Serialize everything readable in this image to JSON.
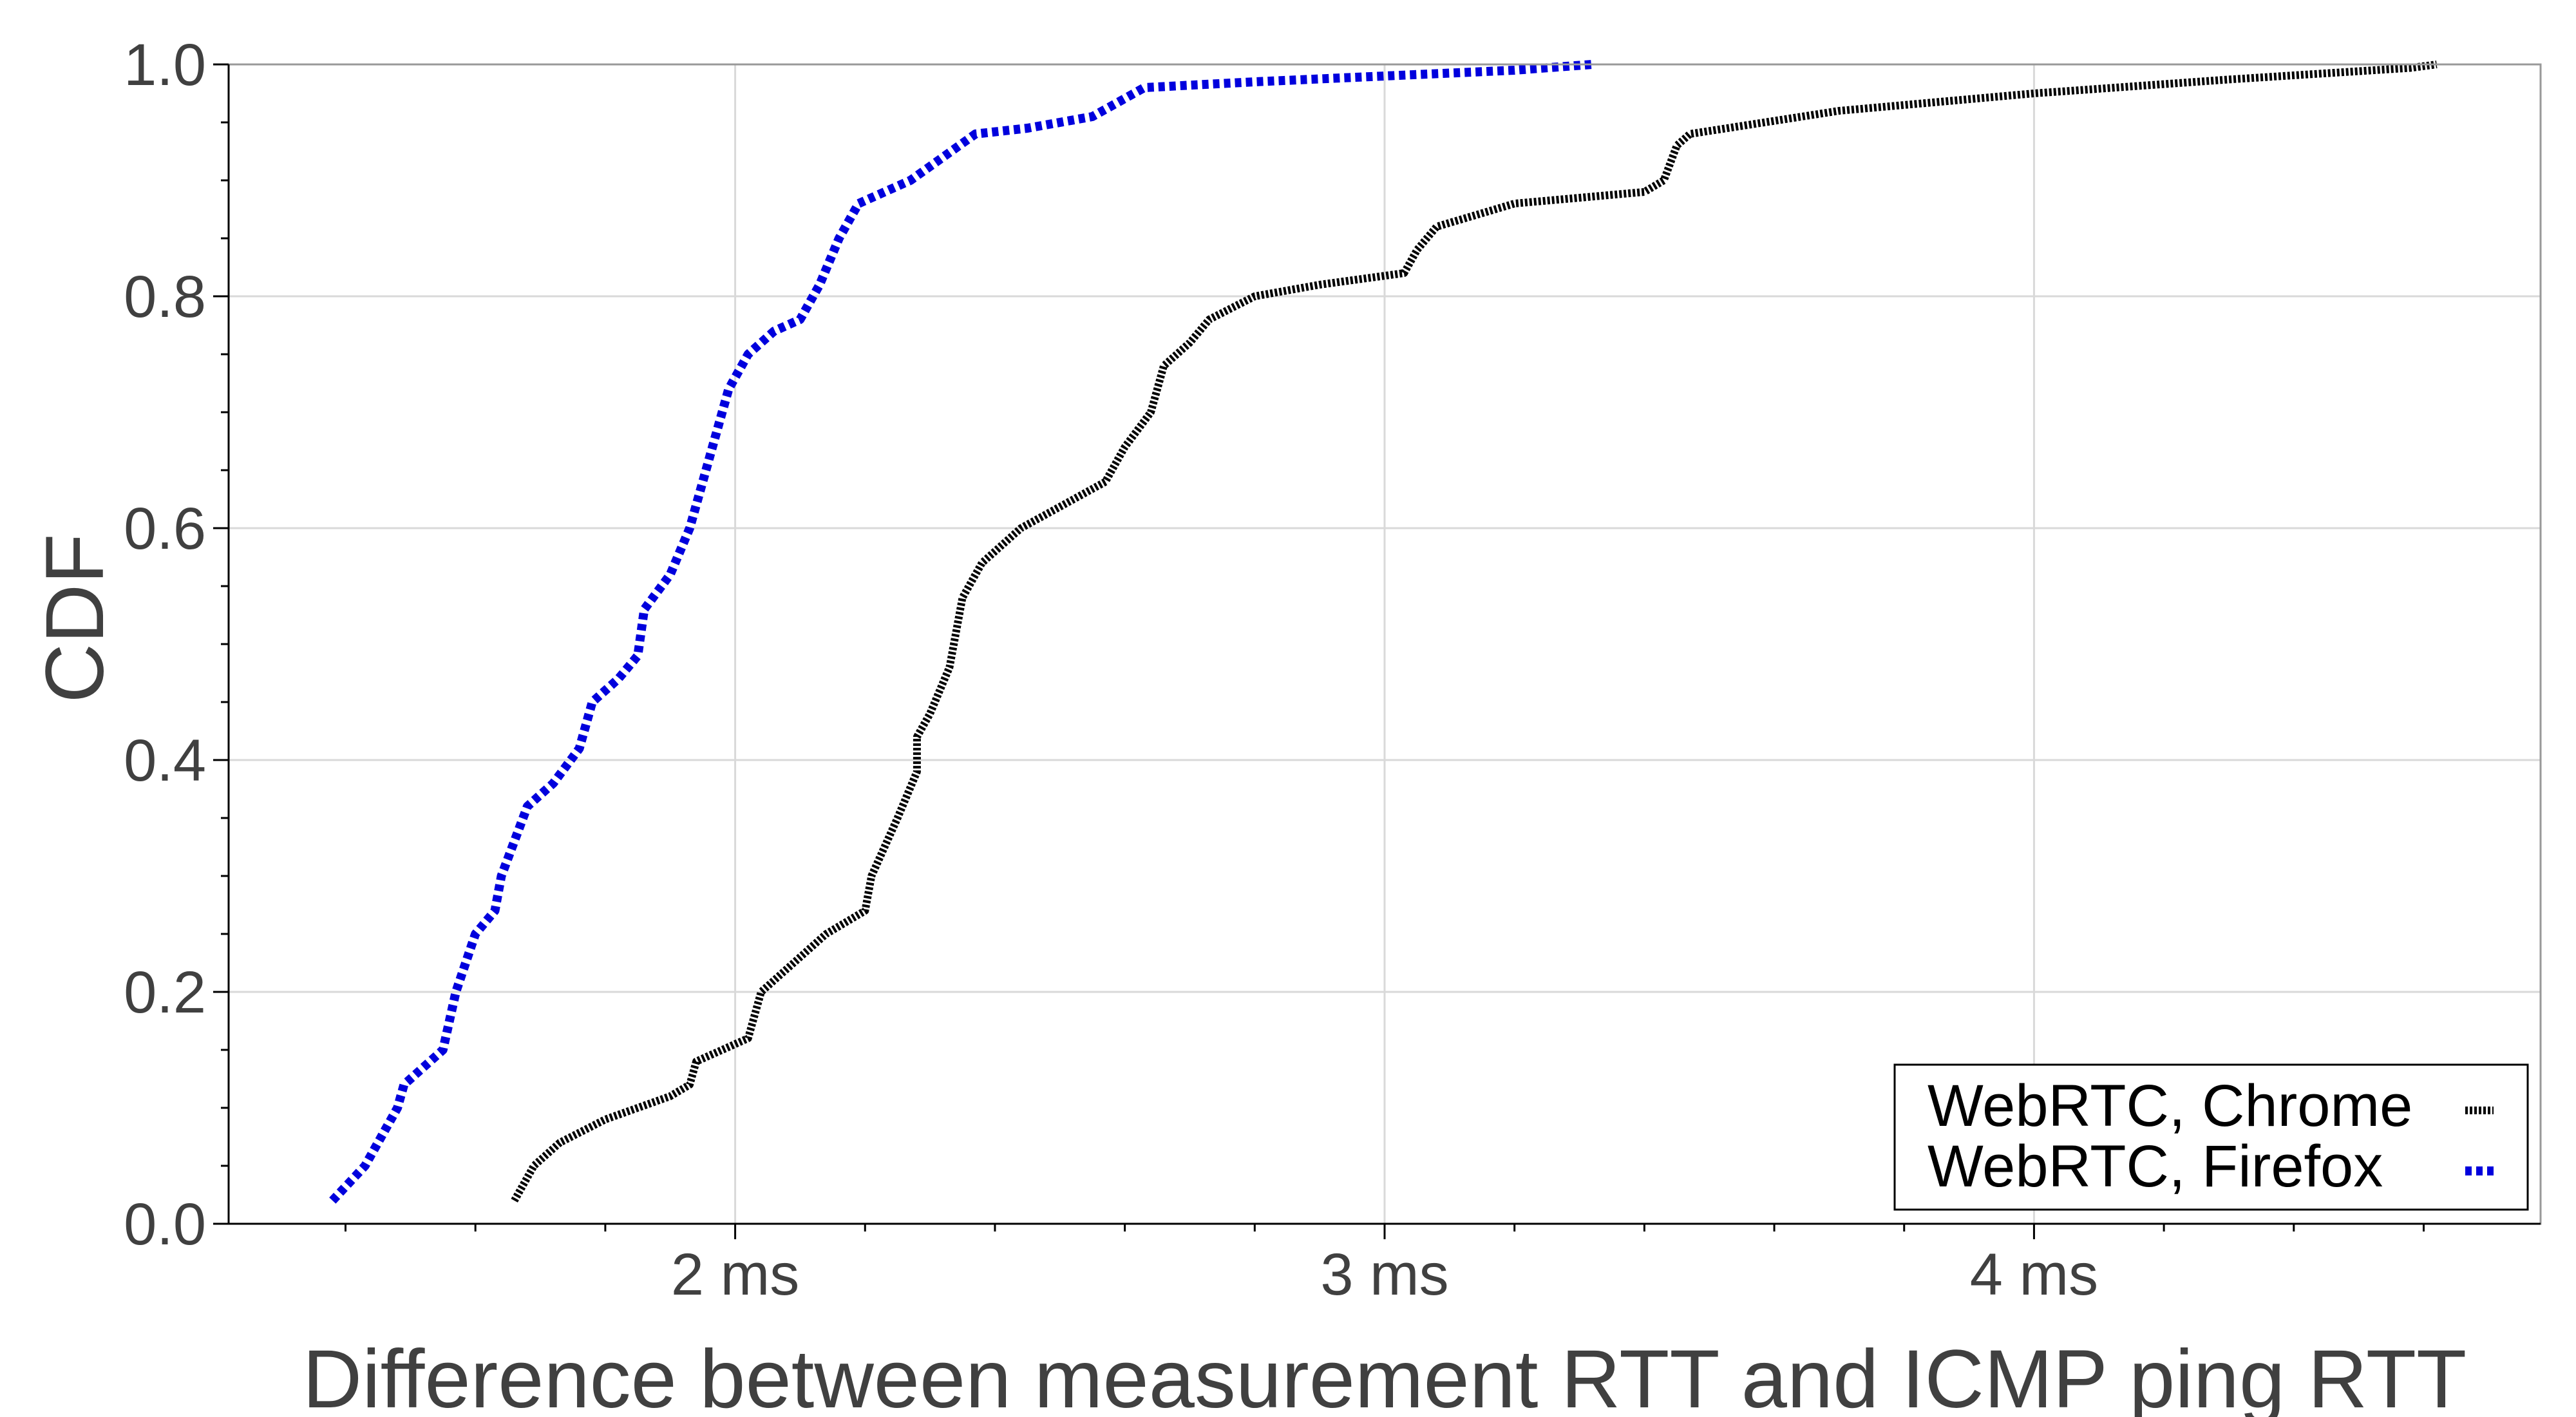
{
  "chart_data": {
    "type": "line",
    "title": "",
    "xlabel": "Difference between measurement RTT and ICMP ping RTT",
    "ylabel": "CDF",
    "xlim": [
      1.22,
      4.78
    ],
    "ylim": [
      0.0,
      1.0
    ],
    "x_ticks": [
      {
        "value": 2,
        "label": "2 ms"
      },
      {
        "value": 3,
        "label": "3 ms"
      },
      {
        "value": 4,
        "label": "4 ms"
      }
    ],
    "y_ticks": [
      {
        "value": 0.0,
        "label": "0.0"
      },
      {
        "value": 0.2,
        "label": "0.2"
      },
      {
        "value": 0.4,
        "label": "0.4"
      },
      {
        "value": 0.6,
        "label": "0.6"
      },
      {
        "value": 0.8,
        "label": "0.8"
      },
      {
        "value": 1.0,
        "label": "1.0"
      }
    ],
    "grid": true,
    "legend_position": "bottom-right",
    "series": [
      {
        "name": "WebRTC, Chrome",
        "color": "#000000",
        "style": "dashed",
        "points": [
          [
            1.66,
            0.02
          ],
          [
            1.69,
            0.05
          ],
          [
            1.73,
            0.07
          ],
          [
            1.8,
            0.09
          ],
          [
            1.9,
            0.11
          ],
          [
            1.93,
            0.12
          ],
          [
            1.94,
            0.14
          ],
          [
            2.02,
            0.16
          ],
          [
            2.04,
            0.2
          ],
          [
            2.1,
            0.23
          ],
          [
            2.14,
            0.25
          ],
          [
            2.2,
            0.27
          ],
          [
            2.21,
            0.3
          ],
          [
            2.25,
            0.35
          ],
          [
            2.28,
            0.39
          ],
          [
            2.28,
            0.42
          ],
          [
            2.3,
            0.44
          ],
          [
            2.33,
            0.48
          ],
          [
            2.35,
            0.54
          ],
          [
            2.38,
            0.57
          ],
          [
            2.44,
            0.6
          ],
          [
            2.57,
            0.64
          ],
          [
            2.6,
            0.67
          ],
          [
            2.64,
            0.7
          ],
          [
            2.66,
            0.74
          ],
          [
            2.7,
            0.76
          ],
          [
            2.73,
            0.78
          ],
          [
            2.8,
            0.8
          ],
          [
            2.9,
            0.81
          ],
          [
            3.03,
            0.82
          ],
          [
            3.05,
            0.84
          ],
          [
            3.08,
            0.86
          ],
          [
            3.2,
            0.88
          ],
          [
            3.4,
            0.89
          ],
          [
            3.43,
            0.9
          ],
          [
            3.45,
            0.93
          ],
          [
            3.47,
            0.94
          ],
          [
            3.7,
            0.96
          ],
          [
            4.0,
            0.975
          ],
          [
            4.3,
            0.987
          ],
          [
            4.58,
            0.997
          ],
          [
            4.62,
            1.0
          ]
        ]
      },
      {
        "name": "WebRTC, Firefox",
        "color": "#0000dd",
        "style": "dotted",
        "points": [
          [
            1.38,
            0.02
          ],
          [
            1.43,
            0.05
          ],
          [
            1.48,
            0.1
          ],
          [
            1.49,
            0.12
          ],
          [
            1.55,
            0.15
          ],
          [
            1.57,
            0.2
          ],
          [
            1.6,
            0.25
          ],
          [
            1.63,
            0.27
          ],
          [
            1.64,
            0.3
          ],
          [
            1.68,
            0.36
          ],
          [
            1.72,
            0.38
          ],
          [
            1.76,
            0.41
          ],
          [
            1.78,
            0.45
          ],
          [
            1.82,
            0.47
          ],
          [
            1.85,
            0.49
          ],
          [
            1.86,
            0.53
          ],
          [
            1.9,
            0.56
          ],
          [
            1.93,
            0.6
          ],
          [
            1.95,
            0.64
          ],
          [
            1.97,
            0.68
          ],
          [
            1.99,
            0.72
          ],
          [
            2.02,
            0.75
          ],
          [
            2.06,
            0.77
          ],
          [
            2.1,
            0.78
          ],
          [
            2.13,
            0.81
          ],
          [
            2.16,
            0.85
          ],
          [
            2.19,
            0.88
          ],
          [
            2.27,
            0.9
          ],
          [
            2.32,
            0.92
          ],
          [
            2.37,
            0.94
          ],
          [
            2.45,
            0.945
          ],
          [
            2.55,
            0.955
          ],
          [
            2.63,
            0.98
          ],
          [
            2.8,
            0.985
          ],
          [
            3.0,
            0.99
          ],
          [
            3.2,
            0.995
          ],
          [
            3.32,
            1.0
          ]
        ]
      }
    ]
  }
}
